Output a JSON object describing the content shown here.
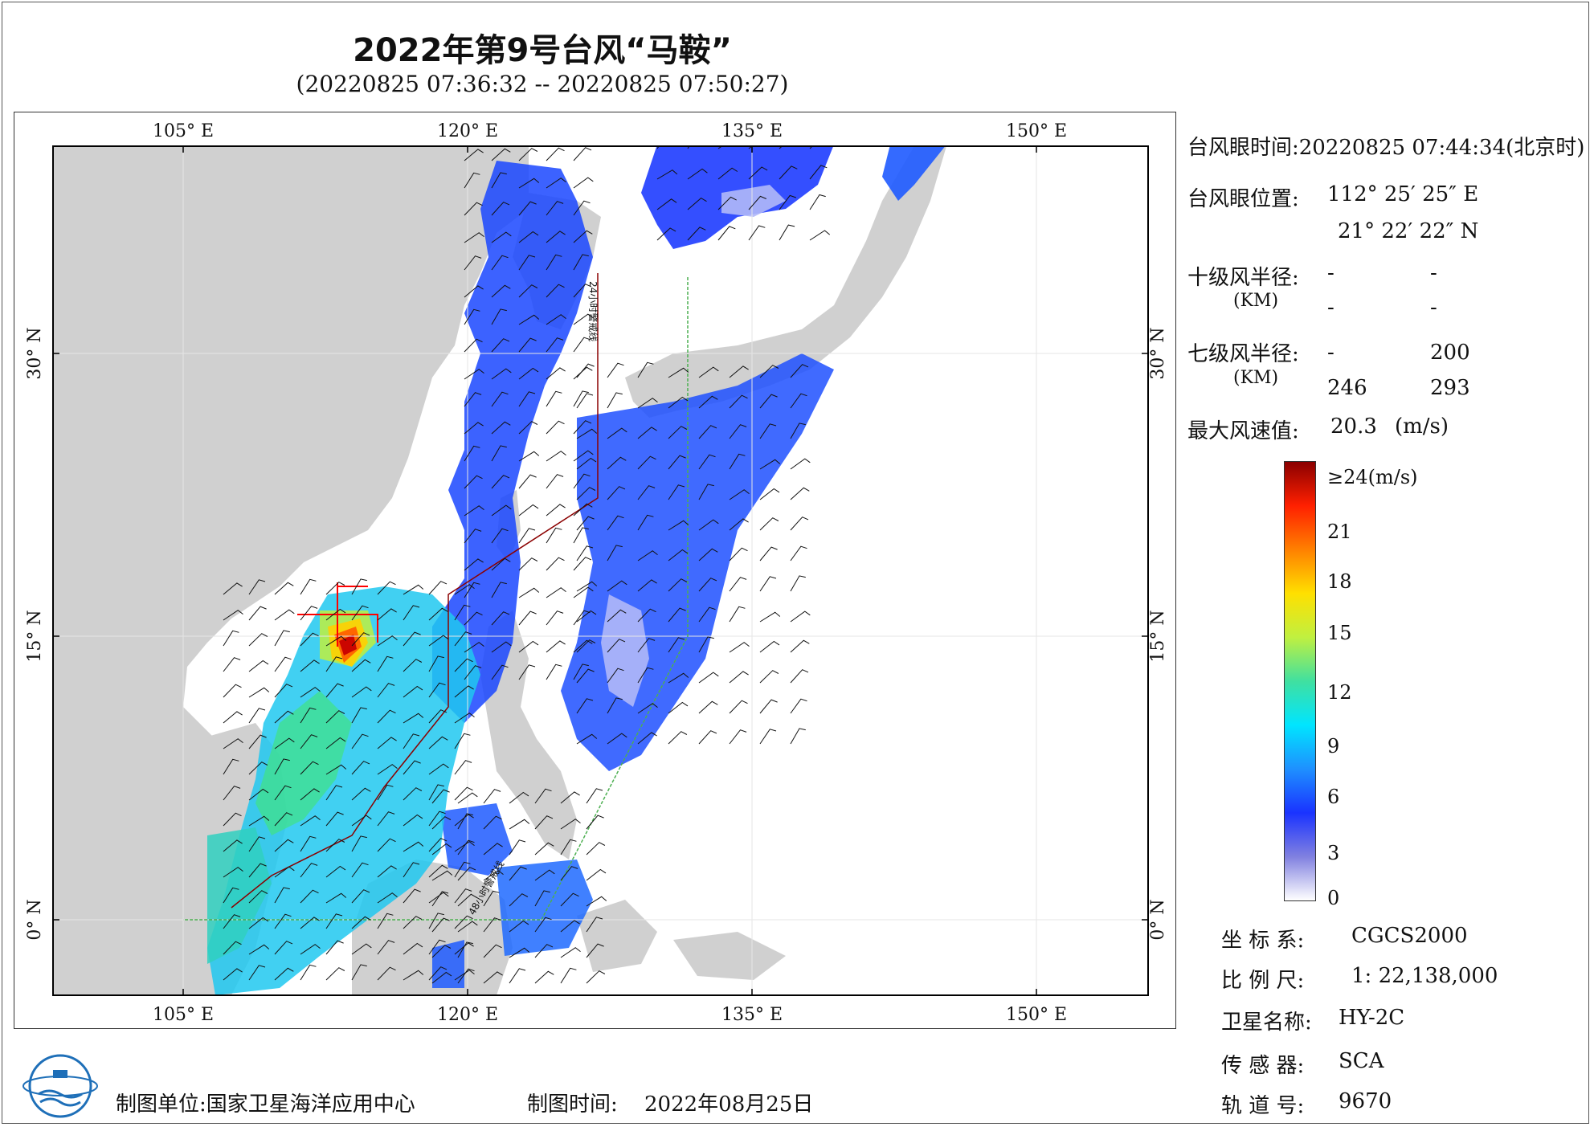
{
  "title": "2022年第9号台风“马鞍”",
  "subtitle": "(20220825 07:36:32 -- 20220825 07:50:27)",
  "map": {
    "lon_labels": [
      "105° E",
      "120° E",
      "135° E",
      "150° E"
    ],
    "lat_labels": [
      "30° N",
      "15° N",
      "0° N"
    ],
    "track_labels": [
      "24小时警戒线",
      "48小时警戒线"
    ],
    "colors": {
      "land": "#d0d0d0",
      "ocean": "#ffffff",
      "track_line": "#8b0000",
      "warning_line_green": "#4caf50",
      "typhoon_cross": "#ff0000"
    }
  },
  "info": {
    "eye_time_label": "台风眼时间:",
    "eye_time_value": "20220825 07:44:34(北京时)",
    "eye_pos_label": "台风眼位置:",
    "eye_lon": "112° 25′ 25″ E",
    "eye_lat": "21° 22′ 22″ N",
    "r10_label": "十级风半径:",
    "r10_unit": "(KM)",
    "r10_values": [
      "-",
      "-",
      "-",
      "-"
    ],
    "r7_label": "七级风半径:",
    "r7_unit": "(KM)",
    "r7_values": [
      "-",
      "200",
      "246",
      "293"
    ],
    "max_wind_label": "最大风速值:",
    "max_wind_value": "20.3",
    "max_wind_unit": "(m/s)"
  },
  "colorbar": {
    "labels": [
      "≥24(m/s)",
      "21",
      "18",
      "15",
      "12",
      "9",
      "6",
      "3",
      "0"
    ],
    "colors": [
      "#ffffff",
      "#8080e0",
      "#1a33ff",
      "#1e90ff",
      "#00e5ff",
      "#40e0a0",
      "#c0f040",
      "#ffe000",
      "#ff8000",
      "#ff2000",
      "#8b0000"
    ]
  },
  "meta": {
    "crs_label": "坐 标 系:",
    "crs_value": "CGCS2000",
    "scale_label": "比 例 尺:",
    "scale_value": "1: 22,138,000",
    "sat_label": "卫星名称:",
    "sat_value": "HY-2C",
    "sensor_label": "传 感 器:",
    "sensor_value": "SCA",
    "orbit_label": "轨 道 号:",
    "orbit_value": "9670"
  },
  "footer": {
    "unit_label": "制图单位:",
    "unit_value": "国家卫星海洋应用中心",
    "date_label": "制图时间:",
    "date_value": "2022年08月25日"
  }
}
